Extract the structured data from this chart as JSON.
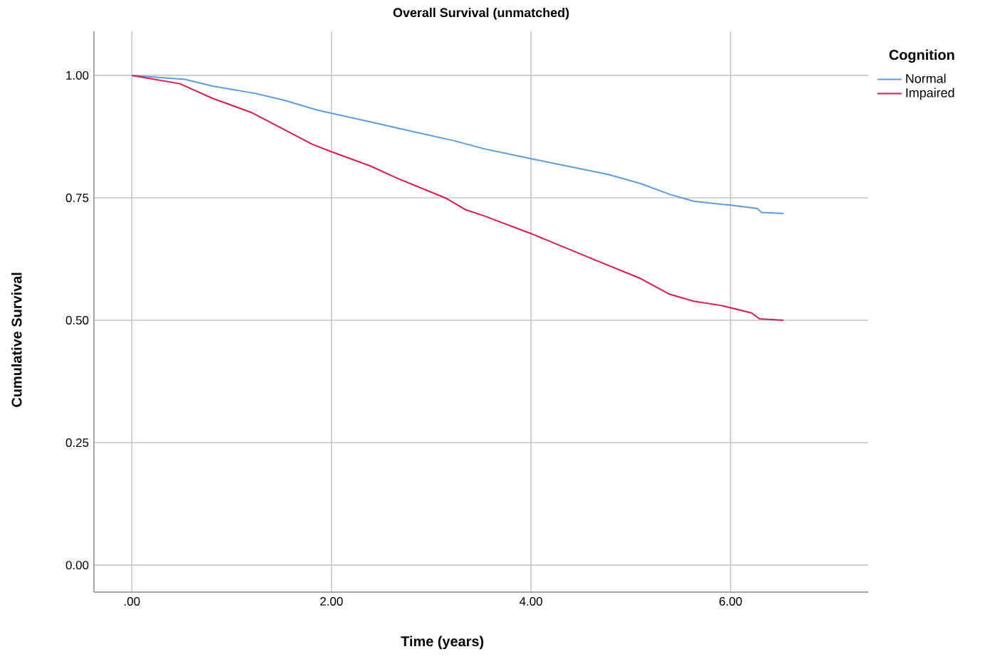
{
  "chart_data": {
    "type": "line",
    "title": "Overall Survival (unmatched)",
    "xlabel": "Time (years)",
    "ylabel": "Cumulative Survival",
    "legend_title": "Cognition",
    "xlim": [
      -0.38,
      7.38
    ],
    "ylim": [
      -0.055,
      1.09
    ],
    "xticks": [
      {
        "value": 0,
        "label": ".00"
      },
      {
        "value": 2,
        "label": "2.00"
      },
      {
        "value": 4,
        "label": "4.00"
      },
      {
        "value": 6,
        "label": "6.00"
      }
    ],
    "yticks": [
      {
        "value": 0,
        "label": "0.00"
      },
      {
        "value": 0.25,
        "label": "0.25"
      },
      {
        "value": 0.5,
        "label": "0.50"
      },
      {
        "value": 0.75,
        "label": "0.75"
      },
      {
        "value": 1,
        "label": "1.00"
      }
    ],
    "grid": true,
    "legend": "top right",
    "marker": "none",
    "series": [
      {
        "name": "Normal",
        "color": "#5b9be0",
        "x": [
          0,
          0.53,
          0.81,
          1.24,
          1.53,
          1.86,
          2.39,
          2.67,
          3.24,
          3.53,
          4.0,
          4.77,
          5.1,
          5.39,
          5.63,
          6.0,
          6.27,
          6.31,
          6.53
        ],
        "values": [
          1.0,
          0.992,
          0.978,
          0.963,
          0.949,
          0.929,
          0.905,
          0.892,
          0.866,
          0.85,
          0.83,
          0.798,
          0.779,
          0.757,
          0.743,
          0.735,
          0.728,
          0.72,
          0.718
        ]
      },
      {
        "name": "Impaired",
        "color": "#d91a4a",
        "x": [
          0,
          0.48,
          0.81,
          1.2,
          1.81,
          2.0,
          2.39,
          2.67,
          3.14,
          3.34,
          3.53,
          4.0,
          4.63,
          5.1,
          5.39,
          5.63,
          5.91,
          6.21,
          6.29,
          6.53
        ],
        "values": [
          1.0,
          0.983,
          0.953,
          0.924,
          0.859,
          0.844,
          0.815,
          0.789,
          0.75,
          0.726,
          0.713,
          0.677,
          0.624,
          0.585,
          0.553,
          0.539,
          0.53,
          0.515,
          0.503,
          0.5
        ]
      }
    ]
  }
}
